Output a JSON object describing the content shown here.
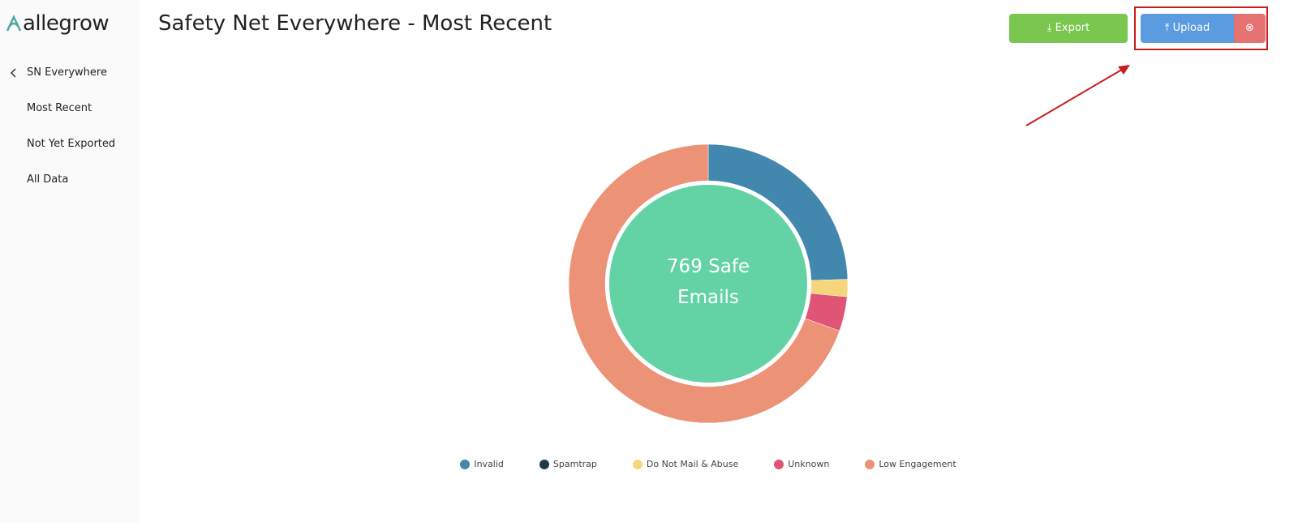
{
  "sidebar": {
    "logo": "allegrow",
    "back": "SN Everywhere",
    "items": [
      "Most Recent",
      "Not Yet Exported",
      "All Data"
    ]
  },
  "header": {
    "title": "Safety Net Everywhere - Most Recent",
    "export": "Export",
    "upload": "Upload"
  },
  "chart_data": {
    "type": "donut",
    "center_label": "769 Safe Emails",
    "categories": [
      "Invalid",
      "Spamtrap",
      "Do Not Mail & Abuse",
      "Unknown",
      "Low Engagement"
    ],
    "values": [
      24.5,
      0,
      2,
      4,
      69.5
    ],
    "colors": [
      "#4287ad",
      "#1f3a4a",
      "#f7d57a",
      "#e05575",
      "#ec9276"
    ],
    "center_color": "#63d3a6"
  }
}
